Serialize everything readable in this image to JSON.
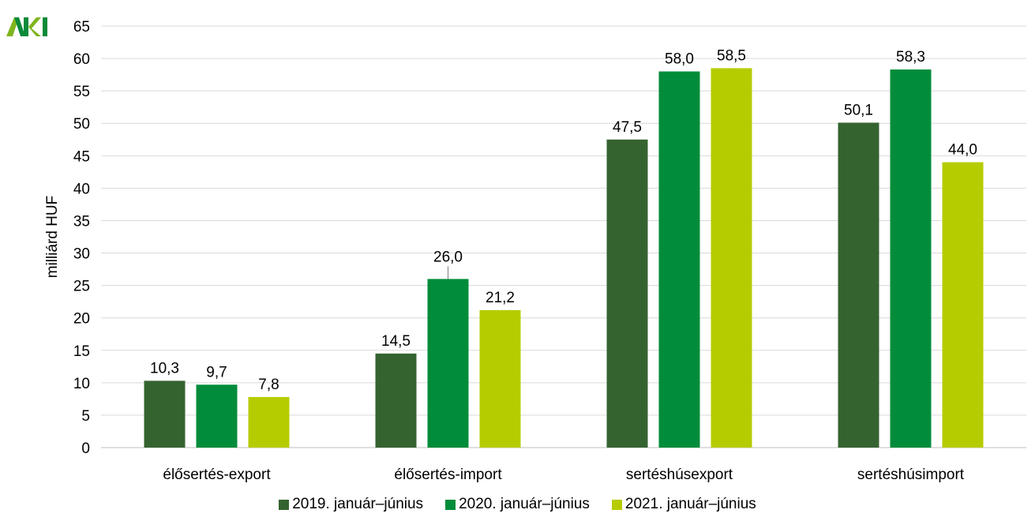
{
  "logo": {
    "text": "AKI"
  },
  "chart_data": {
    "type": "bar",
    "title": "",
    "xlabel": "",
    "ylabel": "milliárd HUF",
    "ylim": [
      0,
      65
    ],
    "yticks": [
      0,
      5,
      10,
      15,
      20,
      25,
      30,
      35,
      40,
      45,
      50,
      55,
      60,
      65
    ],
    "grid": true,
    "legend_position": "bottom",
    "categories": [
      "élősertés-export",
      "élősertés-import",
      "sertéshúsexport",
      "sertéshúsimport"
    ],
    "series": [
      {
        "name": "2019. január–június",
        "color": "#356330",
        "values": [
          10.3,
          14.5,
          47.5,
          50.1
        ],
        "labels": [
          "10,3",
          "14,5",
          "47,5",
          "50,1"
        ]
      },
      {
        "name": "2020. január–június",
        "color": "#008c3a",
        "values": [
          9.7,
          26.0,
          58.0,
          58.3
        ],
        "labels": [
          "9,7",
          "26,0",
          "58,0",
          "58,3"
        ]
      },
      {
        "name": "2021. január–június",
        "color": "#b5cc00",
        "values": [
          7.8,
          21.2,
          58.5,
          44.0
        ],
        "labels": [
          "7,8",
          "21,2",
          "58,5",
          "44,0"
        ]
      }
    ]
  }
}
